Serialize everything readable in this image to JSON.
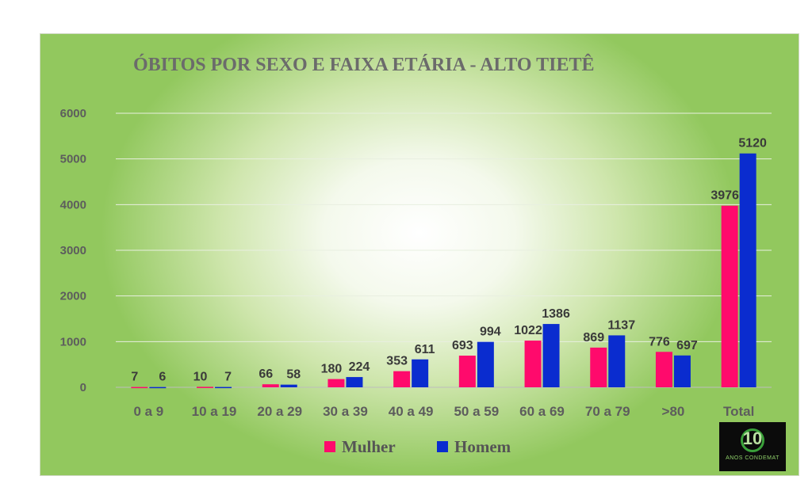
{
  "chart_data": {
    "type": "bar",
    "title": "ÓBITOS POR SEXO E FAIXA ETÁRIA - ALTO TIETÊ",
    "categories": [
      "0 a 9",
      "10 a 19",
      "20 a 29",
      "30 a 39",
      "40 a 49",
      "50 a 59",
      "60 a 69",
      "70 a 79",
      ">80",
      "Total"
    ],
    "series": [
      {
        "name": "Mulher",
        "color": "#ff0a6c",
        "values": [
          7,
          10,
          66,
          180,
          353,
          693,
          1022,
          869,
          776,
          3976
        ]
      },
      {
        "name": "Homem",
        "color": "#0a2ccf",
        "values": [
          6,
          7,
          58,
          224,
          611,
          994,
          1386,
          1137,
          697,
          5120
        ]
      }
    ],
    "ylim": [
      0,
      6000
    ],
    "yticks": [
      "0",
      "1000",
      "2000",
      "3000",
      "4000",
      "5000",
      "6000"
    ],
    "grid": true,
    "legend": "bottom-center"
  },
  "logo": {
    "number": "10",
    "subtitle": "ANOS CONDEMAT"
  }
}
